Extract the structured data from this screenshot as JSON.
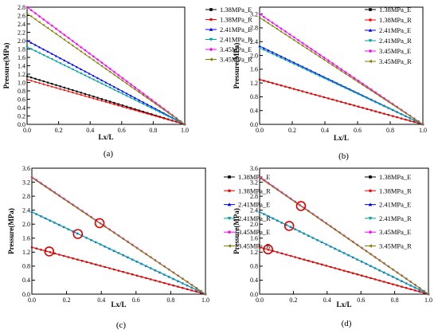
{
  "chart_data": [
    {
      "type": "line",
      "panel_label": "(a)",
      "xlabel": "Lx/L",
      "ylabel": "Pressure(MPa)",
      "xlim": [
        0.0,
        1.0
      ],
      "ylim": [
        0.0,
        2.8
      ],
      "xticks": [
        "0.0",
        "0.2",
        "0.4",
        "0.6",
        "0.8",
        "1.0"
      ],
      "yticks": [
        "0.0",
        "0.2",
        "0.4",
        "0.6",
        "0.8",
        "1.0",
        "1.2",
        "1.4",
        "1.6",
        "1.8",
        "2.0",
        "2.2",
        "2.4",
        "2.6",
        "2.8"
      ],
      "legend_position": "top-right",
      "series": [
        {
          "name": "1.38MPa_E",
          "color": "#000000",
          "marker": "square",
          "x": [
            0,
            1
          ],
          "y": [
            1.15,
            0
          ]
        },
        {
          "name": "1.38MPa_R",
          "color": "#ff0000",
          "marker": "circle",
          "x": [
            0,
            1
          ],
          "y": [
            1.07,
            0
          ]
        },
        {
          "name": "2.41MPa_E",
          "color": "#0000ff",
          "marker": "triangle",
          "x": [
            0,
            1
          ],
          "y": [
            2.0,
            0
          ]
        },
        {
          "name": "2.41MPa_R",
          "color": "#00a0a0",
          "marker": "triangle-down",
          "x": [
            0,
            1
          ],
          "y": [
            1.85,
            0
          ]
        },
        {
          "name": "3.45MPa_E",
          "color": "#ff00ff",
          "marker": "diamond",
          "x": [
            0,
            1
          ],
          "y": [
            2.8,
            0
          ]
        },
        {
          "name": "3.45MPa_R",
          "color": "#808000",
          "marker": "triangle-left",
          "x": [
            0,
            1
          ],
          "y": [
            2.65,
            0
          ]
        }
      ],
      "highlights": []
    },
    {
      "type": "line",
      "panel_label": "(b)",
      "xlabel": "Lx/L",
      "ylabel": "Pressure(MPa)",
      "xlim": [
        0.0,
        1.0
      ],
      "ylim": [
        0.0,
        3.4
      ],
      "xticks": [
        "0.0",
        "0.2",
        "0.4",
        "0.6",
        "0.8",
        "1.0"
      ],
      "yticks": [
        "0.0",
        "0.4",
        "0.8",
        "1.2",
        "1.6",
        "2.0",
        "2.4",
        "2.8",
        "3.2"
      ],
      "legend_position": "top-right",
      "series": [
        {
          "name": "1.38MPa_E",
          "color": "#000000",
          "marker": "square",
          "x": [
            0,
            1
          ],
          "y": [
            1.3,
            0
          ]
        },
        {
          "name": "1.38MPa_R",
          "color": "#ff0000",
          "marker": "circle",
          "x": [
            0,
            1
          ],
          "y": [
            1.3,
            0
          ]
        },
        {
          "name": "2.41MPa_E",
          "color": "#0000ff",
          "marker": "triangle",
          "x": [
            0,
            1
          ],
          "y": [
            2.27,
            0
          ]
        },
        {
          "name": "2.41MPa_R",
          "color": "#00a0a0",
          "marker": "triangle-down",
          "x": [
            0,
            1
          ],
          "y": [
            2.22,
            0
          ]
        },
        {
          "name": "3.45MPa_E",
          "color": "#ff00ff",
          "marker": "diamond",
          "x": [
            0,
            1
          ],
          "y": [
            3.2,
            0
          ]
        },
        {
          "name": "3.45MPa_R",
          "color": "#808000",
          "marker": "triangle-left",
          "x": [
            0,
            1
          ],
          "y": [
            3.1,
            0
          ]
        }
      ],
      "highlights": []
    },
    {
      "type": "line",
      "panel_label": "(c)",
      "xlabel": "Lx/L",
      "ylabel": "Pressure(MPa)",
      "xlim": [
        0.0,
        1.0
      ],
      "ylim": [
        0.0,
        3.6
      ],
      "xticks": [
        "0.0",
        "0.2",
        "0.4",
        "0.6",
        "0.8",
        "1.0"
      ],
      "yticks": [
        "0.0",
        "0.4",
        "0.8",
        "1.2",
        "1.6",
        "2.0",
        "2.4",
        "2.8",
        "3.2",
        "3.6"
      ],
      "legend_position": "top-right",
      "series": [
        {
          "name": "1.38MPa_E",
          "color": "#000000",
          "marker": "square",
          "x": [
            0,
            1
          ],
          "y": [
            1.34,
            0
          ]
        },
        {
          "name": "1.38MPa_R",
          "color": "#ff0000",
          "marker": "circle",
          "x": [
            0,
            1
          ],
          "y": [
            1.34,
            0
          ]
        },
        {
          "name": "2.41MPa_E",
          "color": "#0000ff",
          "marker": "triangle",
          "x": [
            0,
            1
          ],
          "y": [
            2.35,
            0
          ]
        },
        {
          "name": "2.41MPa_R",
          "color": "#00a0a0",
          "marker": "triangle-down",
          "x": [
            0,
            1
          ],
          "y": [
            2.35,
            0
          ]
        },
        {
          "name": "3.45MPa_E",
          "color": "#ff00ff",
          "marker": "diamond",
          "x": [
            0,
            1
          ],
          "y": [
            3.35,
            0
          ]
        },
        {
          "name": "3.45MPa_R",
          "color": "#808000",
          "marker": "triangle-left",
          "x": [
            0,
            1
          ],
          "y": [
            3.33,
            0
          ]
        }
      ],
      "highlights": [
        {
          "x": 0.1,
          "y": 1.22
        },
        {
          "x": 0.265,
          "y": 1.72
        },
        {
          "x": 0.39,
          "y": 2.03
        }
      ]
    },
    {
      "type": "line",
      "panel_label": "(d)",
      "xlabel": "Lx/L",
      "ylabel": "Pressure(MPa)",
      "xlim": [
        0.0,
        1.0
      ],
      "ylim": [
        0.0,
        3.6
      ],
      "xticks": [
        "0.0",
        "0.2",
        "0.4",
        "0.6",
        "0.8",
        "1.0"
      ],
      "yticks": [
        "0.0",
        "0.4",
        "0.8",
        "1.2",
        "1.6",
        "2.0",
        "2.4",
        "2.8",
        "3.2",
        "3.6"
      ],
      "legend_position": "top-right",
      "series": [
        {
          "name": "1.38MPa_E",
          "color": "#000000",
          "marker": "square",
          "x": [
            0,
            1
          ],
          "y": [
            1.34,
            0
          ]
        },
        {
          "name": "1.38MPa_R",
          "color": "#ff0000",
          "marker": "circle",
          "x": [
            0,
            1
          ],
          "y": [
            1.34,
            0
          ]
        },
        {
          "name": "2.41MPa_E",
          "color": "#0000ff",
          "marker": "triangle",
          "x": [
            0,
            1
          ],
          "y": [
            2.35,
            0
          ]
        },
        {
          "name": "2.41MPa_R",
          "color": "#00a0a0",
          "marker": "triangle-down",
          "x": [
            0,
            1
          ],
          "y": [
            2.35,
            0
          ]
        },
        {
          "name": "3.45MPa_E",
          "color": "#ff00ff",
          "marker": "diamond",
          "x": [
            0,
            1
          ],
          "y": [
            3.35,
            0
          ]
        },
        {
          "name": "3.45MPa_R",
          "color": "#808000",
          "marker": "triangle-left",
          "x": [
            0,
            1
          ],
          "y": [
            3.33,
            0
          ]
        }
      ],
      "highlights": [
        {
          "x": 0.05,
          "y": 1.28
        },
        {
          "x": 0.175,
          "y": 1.95
        },
        {
          "x": 0.245,
          "y": 2.52
        }
      ]
    }
  ]
}
